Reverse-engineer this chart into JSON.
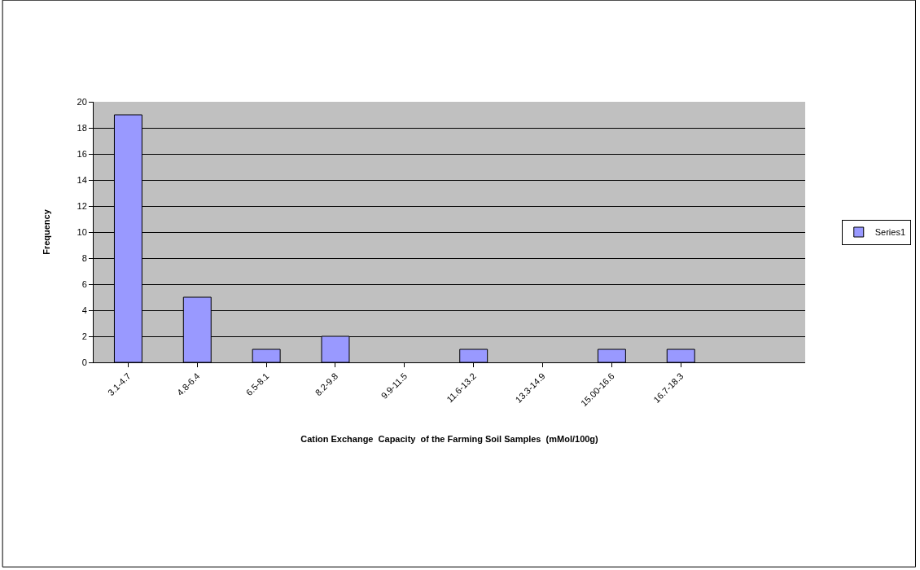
{
  "chart_data": {
    "type": "bar",
    "xlabel": "Cation Exchange  Capacity  of the Farming Soil Samples  (mMol/100g)",
    "ylabel": "Frequency",
    "categories": [
      "3.1-4.7",
      "4.8-6.4",
      "6.5-8.1",
      "8.2-9.8",
      "9.9-11.5",
      "11.6-13.2",
      "13.3-14.9",
      "15.00-16.6",
      "16.7-18.3",
      null
    ],
    "series": [
      {
        "name": "Series1",
        "color": "#9999ff",
        "values": [
          19,
          5,
          1,
          2,
          0,
          1,
          0,
          1,
          1,
          0
        ]
      }
    ],
    "ylim": [
      0,
      20
    ],
    "yticks": [
      0,
      2,
      4,
      6,
      8,
      10,
      12,
      14,
      16,
      18,
      20
    ],
    "grid": "y",
    "legend": "right"
  }
}
